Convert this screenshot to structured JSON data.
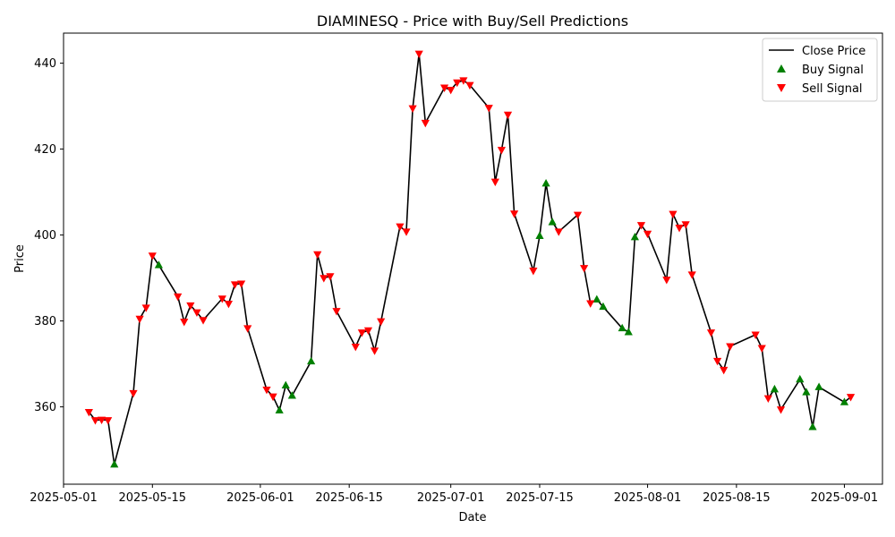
{
  "chart_data": {
    "type": "line",
    "title": "DIAMINESQ - Price with Buy/Sell Predictions",
    "xlabel": "Date",
    "ylabel": "Price",
    "xlim": [
      "2025-05-01",
      "2025-09-07"
    ],
    "ylim": [
      342,
      447
    ],
    "x_ticks": [
      "2025-05-01",
      "2025-05-15",
      "2025-06-01",
      "2025-06-15",
      "2025-07-01",
      "2025-07-15",
      "2025-08-01",
      "2025-08-15",
      "2025-09-01"
    ],
    "y_ticks": [
      360,
      380,
      400,
      420,
      440
    ],
    "grid": false,
    "legend_position": "top-right",
    "legend": [
      "Close Price",
      "Buy Signal",
      "Sell Signal"
    ],
    "colors": {
      "line": "#000000",
      "buy": "#008000",
      "sell": "#ff0000"
    },
    "series": [
      {
        "name": "Close Price",
        "points": [
          [
            "2025-05-05",
            358.8
          ],
          [
            "2025-05-06",
            356.9
          ],
          [
            "2025-05-07",
            357.0
          ],
          [
            "2025-05-08",
            356.9
          ],
          [
            "2025-05-09",
            346.6
          ],
          [
            "2025-05-12",
            363.2
          ],
          [
            "2025-05-13",
            380.5
          ],
          [
            "2025-05-14",
            383.1
          ],
          [
            "2025-05-15",
            395.2
          ],
          [
            "2025-05-16",
            393.0
          ],
          [
            "2025-05-19",
            385.7
          ],
          [
            "2025-05-20",
            379.8
          ],
          [
            "2025-05-21",
            383.6
          ],
          [
            "2025-05-22",
            382.0
          ],
          [
            "2025-05-23",
            380.2
          ],
          [
            "2025-05-26",
            385.2
          ],
          [
            "2025-05-27",
            384.0
          ],
          [
            "2025-05-28",
            388.5
          ],
          [
            "2025-05-29",
            388.7
          ],
          [
            "2025-05-30",
            378.3
          ],
          [
            "2025-06-02",
            364.0
          ],
          [
            "2025-06-03",
            362.4
          ],
          [
            "2025-06-04",
            359.2
          ],
          [
            "2025-06-05",
            365.0
          ],
          [
            "2025-06-06",
            362.6
          ],
          [
            "2025-06-09",
            370.6
          ],
          [
            "2025-06-10",
            395.5
          ],
          [
            "2025-06-11",
            390.0
          ],
          [
            "2025-06-12",
            390.4
          ],
          [
            "2025-06-13",
            382.3
          ],
          [
            "2025-06-16",
            374.0
          ],
          [
            "2025-06-17",
            377.3
          ],
          [
            "2025-06-18",
            377.8
          ],
          [
            "2025-06-19",
            373.1
          ],
          [
            "2025-06-20",
            379.9
          ],
          [
            "2025-06-23",
            402.0
          ],
          [
            "2025-06-24",
            400.8
          ],
          [
            "2025-06-25",
            429.5
          ],
          [
            "2025-06-26",
            442.2
          ],
          [
            "2025-06-27",
            426.1
          ],
          [
            "2025-06-30",
            434.3
          ],
          [
            "2025-07-01",
            433.8
          ],
          [
            "2025-07-02",
            435.5
          ],
          [
            "2025-07-03",
            436.0
          ],
          [
            "2025-07-04",
            434.9
          ],
          [
            "2025-07-07",
            429.6
          ],
          [
            "2025-07-08",
            412.4
          ],
          [
            "2025-07-09",
            419.8
          ],
          [
            "2025-07-10",
            428.0
          ],
          [
            "2025-07-11",
            405.0
          ],
          [
            "2025-07-14",
            391.7
          ],
          [
            "2025-07-15",
            399.8
          ],
          [
            "2025-07-16",
            412.0
          ],
          [
            "2025-07-17",
            403.0
          ],
          [
            "2025-07-18",
            400.8
          ],
          [
            "2025-07-21",
            404.7
          ],
          [
            "2025-07-22",
            392.3
          ],
          [
            "2025-07-23",
            384.1
          ],
          [
            "2025-07-24",
            385.0
          ],
          [
            "2025-07-25",
            383.3
          ],
          [
            "2025-07-28",
            378.3
          ],
          [
            "2025-07-29",
            377.4
          ],
          [
            "2025-07-30",
            399.5
          ],
          [
            "2025-07-31",
            402.3
          ],
          [
            "2025-08-01",
            400.3
          ],
          [
            "2025-08-04",
            389.6
          ],
          [
            "2025-08-05",
            404.9
          ],
          [
            "2025-08-06",
            401.7
          ],
          [
            "2025-08-07",
            402.5
          ],
          [
            "2025-08-08",
            390.8
          ],
          [
            "2025-08-11",
            377.3
          ],
          [
            "2025-08-12",
            370.7
          ],
          [
            "2025-08-13",
            368.6
          ],
          [
            "2025-08-14",
            374.1
          ],
          [
            "2025-08-18",
            376.8
          ],
          [
            "2025-08-19",
            373.7
          ],
          [
            "2025-08-20",
            362.0
          ],
          [
            "2025-08-21",
            364.1
          ],
          [
            "2025-08-22",
            359.4
          ],
          [
            "2025-08-25",
            366.4
          ],
          [
            "2025-08-26",
            363.4
          ],
          [
            "2025-08-27",
            355.3
          ],
          [
            "2025-08-28",
            364.6
          ],
          [
            "2025-09-01",
            361.1
          ],
          [
            "2025-09-02",
            362.3
          ]
        ]
      },
      {
        "name": "Buy Signal",
        "points": [
          [
            "2025-05-09",
            346.6
          ],
          [
            "2025-05-16",
            393.0
          ],
          [
            "2025-06-04",
            359.2
          ],
          [
            "2025-06-05",
            365.0
          ],
          [
            "2025-06-06",
            362.6
          ],
          [
            "2025-06-09",
            370.6
          ],
          [
            "2025-07-15",
            399.8
          ],
          [
            "2025-07-16",
            412.0
          ],
          [
            "2025-07-17",
            403.0
          ],
          [
            "2025-07-24",
            385.0
          ],
          [
            "2025-07-25",
            383.3
          ],
          [
            "2025-07-28",
            378.3
          ],
          [
            "2025-07-29",
            377.4
          ],
          [
            "2025-07-30",
            399.5
          ],
          [
            "2025-08-21",
            364.1
          ],
          [
            "2025-08-25",
            366.4
          ],
          [
            "2025-08-26",
            363.4
          ],
          [
            "2025-08-27",
            355.3
          ],
          [
            "2025-08-28",
            364.6
          ],
          [
            "2025-09-01",
            361.1
          ]
        ]
      },
      {
        "name": "Sell Signal",
        "points": [
          [
            "2025-05-05",
            358.8
          ],
          [
            "2025-05-06",
            356.9
          ],
          [
            "2025-05-07",
            357.0
          ],
          [
            "2025-05-08",
            356.9
          ],
          [
            "2025-05-12",
            363.2
          ],
          [
            "2025-05-13",
            380.5
          ],
          [
            "2025-05-14",
            383.1
          ],
          [
            "2025-05-15",
            395.2
          ],
          [
            "2025-05-19",
            385.7
          ],
          [
            "2025-05-20",
            379.8
          ],
          [
            "2025-05-21",
            383.6
          ],
          [
            "2025-05-22",
            382.0
          ],
          [
            "2025-05-23",
            380.2
          ],
          [
            "2025-05-26",
            385.2
          ],
          [
            "2025-05-27",
            384.0
          ],
          [
            "2025-05-28",
            388.5
          ],
          [
            "2025-05-29",
            388.7
          ],
          [
            "2025-05-30",
            378.3
          ],
          [
            "2025-06-02",
            364.0
          ],
          [
            "2025-06-03",
            362.4
          ],
          [
            "2025-06-10",
            395.5
          ],
          [
            "2025-06-11",
            390.0
          ],
          [
            "2025-06-12",
            390.4
          ],
          [
            "2025-06-13",
            382.3
          ],
          [
            "2025-06-16",
            374.0
          ],
          [
            "2025-06-17",
            377.3
          ],
          [
            "2025-06-18",
            377.8
          ],
          [
            "2025-06-19",
            373.1
          ],
          [
            "2025-06-20",
            379.9
          ],
          [
            "2025-06-23",
            402.0
          ],
          [
            "2025-06-24",
            400.8
          ],
          [
            "2025-06-25",
            429.5
          ],
          [
            "2025-06-26",
            442.2
          ],
          [
            "2025-06-27",
            426.1
          ],
          [
            "2025-06-30",
            434.3
          ],
          [
            "2025-07-01",
            433.8
          ],
          [
            "2025-07-02",
            435.5
          ],
          [
            "2025-07-03",
            436.0
          ],
          [
            "2025-07-04",
            434.9
          ],
          [
            "2025-07-07",
            429.6
          ],
          [
            "2025-07-08",
            412.4
          ],
          [
            "2025-07-09",
            419.8
          ],
          [
            "2025-07-10",
            428.0
          ],
          [
            "2025-07-11",
            405.0
          ],
          [
            "2025-07-14",
            391.7
          ],
          [
            "2025-07-18",
            400.8
          ],
          [
            "2025-07-21",
            404.7
          ],
          [
            "2025-07-22",
            392.3
          ],
          [
            "2025-07-23",
            384.1
          ],
          [
            "2025-07-31",
            402.3
          ],
          [
            "2025-08-01",
            400.3
          ],
          [
            "2025-08-04",
            389.6
          ],
          [
            "2025-08-05",
            404.9
          ],
          [
            "2025-08-06",
            401.7
          ],
          [
            "2025-08-07",
            402.5
          ],
          [
            "2025-08-08",
            390.8
          ],
          [
            "2025-08-11",
            377.3
          ],
          [
            "2025-08-12",
            370.7
          ],
          [
            "2025-08-13",
            368.6
          ],
          [
            "2025-08-14",
            374.1
          ],
          [
            "2025-08-18",
            376.8
          ],
          [
            "2025-08-19",
            373.7
          ],
          [
            "2025-08-20",
            362.0
          ],
          [
            "2025-08-22",
            359.4
          ],
          [
            "2025-09-02",
            362.3
          ]
        ]
      }
    ]
  }
}
